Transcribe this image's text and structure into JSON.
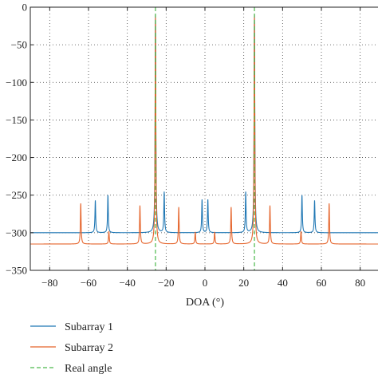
{
  "chart_data": {
    "type": "line",
    "xlabel": "DOA (°)",
    "ylabel": "",
    "xlim": [
      -90,
      90
    ],
    "ylim": [
      -350,
      0
    ],
    "x_ticks": [
      -80,
      -60,
      -40,
      -20,
      0,
      20,
      40,
      60,
      80
    ],
    "y_ticks": [
      0,
      -50,
      -100,
      -150,
      -200,
      -250,
      -300,
      -350
    ],
    "x_tick_labels": [
      "−80",
      "−60",
      "−40",
      "−20",
      "0",
      "20",
      "40",
      "60",
      "80"
    ],
    "y_tick_labels": [
      "0",
      "−50",
      "−100",
      "−150",
      "−200",
      "−250",
      "−300",
      "−350"
    ],
    "grid": true,
    "grid_style": "dotted",
    "legend_position": "below",
    "series": [
      {
        "name": "Subarray 1",
        "color": "#1f77b4",
        "style": "solid",
        "baseline": -300,
        "peaks": [
          {
            "x": -56.5,
            "y": -257
          },
          {
            "x": -50,
            "y": -250
          },
          {
            "x": -25.5,
            "y": -10
          },
          {
            "x": -21,
            "y": -246
          },
          {
            "x": -1.5,
            "y": -256
          },
          {
            "x": 1.5,
            "y": -256
          },
          {
            "x": 21,
            "y": -246
          },
          {
            "x": 25.5,
            "y": -10
          },
          {
            "x": 50,
            "y": -250
          },
          {
            "x": 56.5,
            "y": -257
          }
        ]
      },
      {
        "name": "Subarray 2",
        "color": "#e5642b",
        "style": "solid",
        "baseline": -315,
        "peaks": [
          {
            "x": -64,
            "y": -261
          },
          {
            "x": -49.5,
            "y": -298
          },
          {
            "x": -33.5,
            "y": -264
          },
          {
            "x": -25.5,
            "y": -10
          },
          {
            "x": -13.5,
            "y": -266
          },
          {
            "x": -5,
            "y": -299
          },
          {
            "x": 5,
            "y": -299
          },
          {
            "x": 13.5,
            "y": -266
          },
          {
            "x": 25.5,
            "y": -10
          },
          {
            "x": 33.5,
            "y": -264
          },
          {
            "x": 49.5,
            "y": -298
          },
          {
            "x": 64,
            "y": -261
          }
        ]
      },
      {
        "name": "Real angle",
        "color": "#4cb94c",
        "style": "dashed",
        "x_positions": [
          -25.5,
          25.5
        ]
      }
    ]
  }
}
